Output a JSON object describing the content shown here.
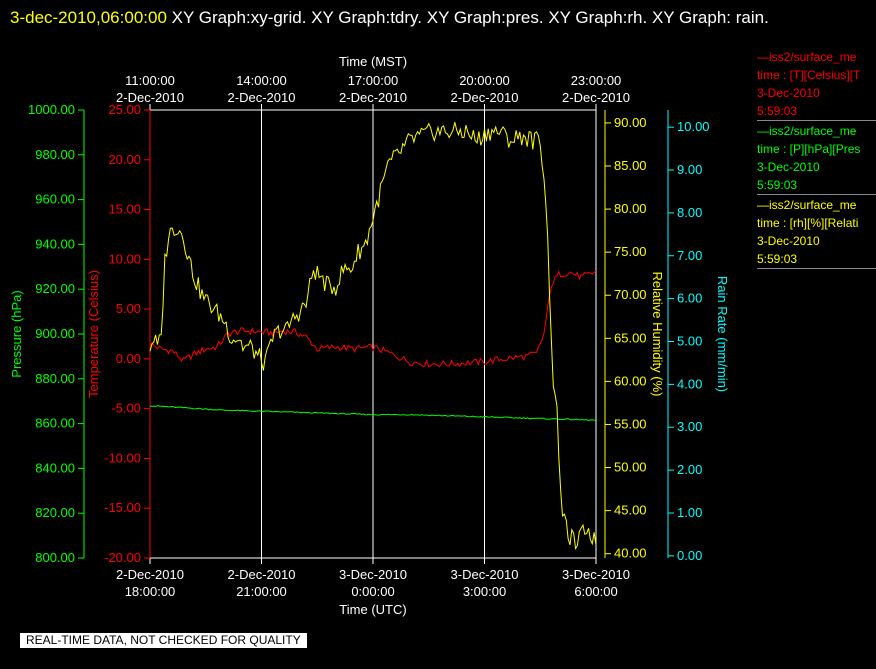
{
  "header": {
    "timestamp": "3-dec-2010,06:00:00",
    "rest": "  XY Graph:xy-grid.  XY Graph:tdry.  XY Graph:pres.  XY Graph:rh.  XY Graph: rain."
  },
  "notice": "REAL-TIME DATA, NOT CHECKED FOR QUALITY",
  "colors": {
    "background": "#000000",
    "temperature": "#ff0000",
    "pressure": "#00ff00",
    "humidity": "#ffff00",
    "rain": "#00ffff",
    "grid": "#ffffff"
  },
  "legend": [
    {
      "color": "#ff0000",
      "lines": [
        "—iss2/surface_me",
        "time : [T][Celsius][T",
        "3-Dec-2010",
        "5:59:03"
      ]
    },
    {
      "color": "#00ff00",
      "lines": [
        "—iss2/surface_me",
        "time : [P][hPa][Pres",
        "3-Dec-2010",
        "5:59:03"
      ]
    },
    {
      "color": "#ffff00",
      "lines": [
        "—iss2/surface_me",
        "time : [rh][%][Relati",
        "3-Dec-2010",
        "5:59:03"
      ]
    }
  ],
  "chart_data": {
    "type": "line",
    "xlabel_bottom": "Time (UTC)",
    "xlabel_top": "Time (MST)",
    "x_ticks_utc": [
      {
        "date": "2-Dec-2010",
        "time": "18:00:00"
      },
      {
        "date": "2-Dec-2010",
        "time": "21:00:00"
      },
      {
        "date": "3-Dec-2010",
        "time": "0:00:00"
      },
      {
        "date": "3-Dec-2010",
        "time": "3:00:00"
      },
      {
        "date": "3-Dec-2010",
        "time": "6:00:00"
      }
    ],
    "x_ticks_mst": [
      {
        "time": "11:00:00",
        "date": "2-Dec-2010"
      },
      {
        "time": "14:00:00",
        "date": "2-Dec-2010"
      },
      {
        "time": "17:00:00",
        "date": "2-Dec-2010"
      },
      {
        "time": "20:00:00",
        "date": "2-Dec-2010"
      },
      {
        "time": "23:00:00",
        "date": "2-Dec-2010"
      }
    ],
    "x_unit": "hours since 2-Dec-2010 18:00 UTC",
    "xlim": [
      0,
      12
    ],
    "grid": true,
    "axes": {
      "pressure": {
        "label": "Pressure (hPa)",
        "ylim": [
          800,
          1000
        ],
        "ticks": [
          "800.00",
          "820.00",
          "840.00",
          "860.00",
          "880.00",
          "900.00",
          "920.00",
          "940.00",
          "960.00",
          "980.00",
          "1000.00"
        ]
      },
      "temperature": {
        "label": "Temperature (Celsius)",
        "ylim": [
          -20,
          25
        ],
        "ticks": [
          "-20.00",
          "-15.00",
          "-10.00",
          "-5.00",
          "0.00",
          "5.00",
          "10.00",
          "15.00",
          "20.00",
          "25.00"
        ]
      },
      "humidity": {
        "label": "Relative Humidity (%)",
        "ylim": [
          39.5,
          91.5
        ],
        "ticks": [
          "40.00",
          "45.00",
          "50.00",
          "55.00",
          "60.00",
          "65.00",
          "70.00",
          "75.00",
          "80.00",
          "85.00",
          "90.00"
        ]
      },
      "rain": {
        "label": "Rain Rate (mm/min)",
        "ylim": [
          -0.05,
          10.4
        ],
        "ticks": [
          "0.00",
          "1.00",
          "2.00",
          "3.00",
          "4.00",
          "5.00",
          "6.00",
          "7.00",
          "8.00",
          "9.00",
          "10.00"
        ]
      }
    },
    "series": [
      {
        "axis": "temperature",
        "x": [
          0,
          0.3,
          0.6,
          0.9,
          1.2,
          1.5,
          1.8,
          2.1,
          2.4,
          2.7,
          3,
          3.3,
          3.6,
          3.9,
          4.2,
          4.5,
          5,
          5.5,
          6,
          6.5,
          7,
          7.5,
          8,
          8.5,
          9,
          9.5,
          10,
          10.4,
          10.6,
          10.8,
          11,
          11.3,
          11.6,
          11.9,
          12
        ],
        "values": [
          1.5,
          1,
          0.8,
          -0.2,
          0.5,
          1,
          1.2,
          2.5,
          2.8,
          2.8,
          2.7,
          2.6,
          2.8,
          2.7,
          2.2,
          1,
          1.2,
          1,
          1.2,
          0.5,
          -0.3,
          -0.5,
          -0.5,
          -0.4,
          -0.3,
          0,
          0.2,
          0.5,
          2.5,
          7.5,
          8.5,
          8.7,
          8.2,
          8.6,
          8.8
        ]
      },
      {
        "axis": "pressure",
        "x": [
          0,
          1,
          2,
          3,
          4,
          5,
          6,
          7,
          8,
          9,
          10,
          11,
          12
        ],
        "values": [
          868,
          867,
          866,
          865.5,
          865,
          864.5,
          864,
          864,
          863.5,
          863,
          862.5,
          862,
          861.5
        ]
      },
      {
        "axis": "humidity",
        "x": [
          0,
          0.1,
          0.2,
          0.3,
          0.4,
          0.5,
          0.7,
          0.9,
          1.0,
          1.2,
          1.4,
          1.6,
          1.8,
          2.0,
          2.2,
          2.4,
          2.5,
          2.7,
          2.9,
          3.1,
          3.3,
          3.5,
          3.7,
          3.8,
          4.0,
          4.2,
          4.4,
          4.6,
          4.8,
          5.0,
          5.2,
          5.4,
          5.6,
          5.8,
          6.0,
          6.2,
          6.4,
          6.6,
          6.8,
          7.0,
          7.3,
          7.6,
          7.9,
          8.2,
          8.5,
          8.8,
          9.1,
          9.4,
          9.7,
          10.0,
          10.3,
          10.5,
          10.6,
          10.65,
          10.75,
          10.85,
          10.95,
          11.1,
          11.3,
          11.5,
          11.7,
          11.85,
          12
        ],
        "values": [
          64,
          65,
          64,
          65,
          74,
          77,
          78,
          77,
          75,
          72,
          70,
          69,
          68,
          67,
          65,
          65,
          64,
          64,
          63,
          62,
          65,
          66,
          66,
          67,
          68,
          69,
          73,
          72,
          71,
          71,
          73,
          73,
          75,
          76,
          79,
          82,
          85,
          86,
          87,
          88,
          88.5,
          89,
          89,
          89,
          89,
          88,
          89,
          89,
          88,
          88.5,
          88,
          88,
          84,
          81,
          71,
          60,
          56,
          44,
          42,
          41,
          43,
          42.5,
          41
        ]
      }
    ]
  }
}
